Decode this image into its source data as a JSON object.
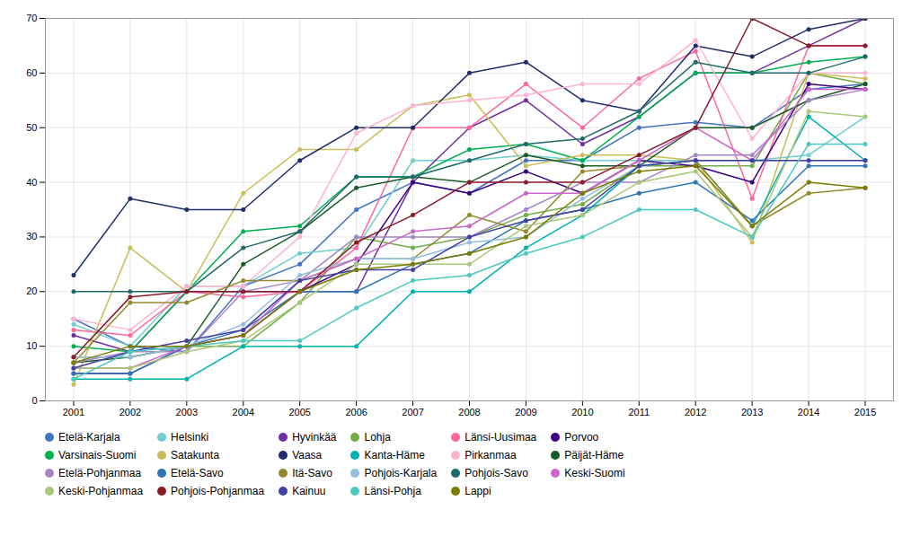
{
  "chart_data": {
    "type": "line",
    "x": [
      2001,
      2002,
      2003,
      2004,
      2005,
      2006,
      2007,
      2008,
      2009,
      2010,
      2011,
      2012,
      2013,
      2014,
      2015
    ],
    "xlim": [
      2000.5,
      2015.5
    ],
    "xticks": [
      2001,
      2002,
      2003,
      2004,
      2005,
      2006,
      2007,
      2008,
      2009,
      2010,
      2011,
      2012,
      2013,
      2014,
      2015
    ],
    "ylim": [
      0,
      70
    ],
    "yticks": [
      0,
      10,
      20,
      30,
      40,
      50,
      60,
      70
    ],
    "grid": true,
    "legend": "bottom",
    "marker": "circle",
    "series": [
      {
        "name": "Etelä-Karjala",
        "color": "#4472C4",
        "values": [
          15,
          10,
          9,
          21,
          25,
          35,
          40,
          38,
          44,
          44,
          50,
          51,
          50,
          57,
          58
        ]
      },
      {
        "name": "Helsinki",
        "color": "#70CECE",
        "values": [
          14,
          10,
          21,
          21,
          27,
          28,
          44,
          44,
          45,
          44,
          44,
          44,
          44,
          45,
          52
        ]
      },
      {
        "name": "Hyvinkää",
        "color": "#7030A0",
        "values": [
          12,
          9,
          20,
          20,
          20,
          20,
          40,
          50,
          55,
          47,
          52,
          60,
          60,
          65,
          70
        ]
      },
      {
        "name": "Lohja",
        "color": "#70AD47",
        "values": [
          8,
          8,
          10,
          10,
          18,
          30,
          28,
          30,
          34,
          36,
          43,
          43,
          43,
          60,
          58
        ]
      },
      {
        "name": "Länsi-Uusimaa",
        "color": "#FF6699",
        "values": [
          13,
          12,
          20,
          19,
          20,
          28,
          50,
          50,
          58,
          50,
          59,
          64,
          37,
          65,
          65
        ]
      },
      {
        "name": "Porvoo",
        "color": "#3B0083",
        "values": [
          5,
          5,
          10,
          12,
          20,
          25,
          40,
          38,
          42,
          38,
          44,
          43,
          40,
          58,
          57
        ]
      },
      {
        "name": "Varsinais-Suomi",
        "color": "#00B050",
        "values": [
          10,
          9,
          20,
          31,
          32,
          41,
          41,
          46,
          47,
          44,
          52,
          60,
          60,
          62,
          63
        ]
      },
      {
        "name": "Satakunta",
        "color": "#C9BE59",
        "values": [
          3,
          28,
          20,
          38,
          46,
          46,
          54,
          56,
          43,
          45,
          45,
          44,
          29,
          60,
          59
        ]
      },
      {
        "name": "Vaasa",
        "color": "#1F2D6B",
        "values": [
          23,
          37,
          35,
          35,
          44,
          50,
          50,
          60,
          62,
          55,
          53,
          65,
          63,
          68,
          70
        ]
      },
      {
        "name": "Kanta-Häme",
        "color": "#00B0B0",
        "values": [
          4,
          4,
          4,
          10,
          10,
          10,
          20,
          20,
          28,
          34,
          43,
          44,
          32,
          52,
          44
        ]
      },
      {
        "name": "Pirkanmaa",
        "color": "#FFB3D1",
        "values": [
          15,
          13,
          21,
          21,
          30,
          49,
          54,
          55,
          56,
          58,
          58,
          66,
          48,
          60,
          60
        ]
      },
      {
        "name": "Päijät-Häme",
        "color": "#1A5C28",
        "values": [
          7,
          8,
          10,
          25,
          31,
          39,
          41,
          40,
          45,
          43,
          43,
          50,
          50,
          55,
          58
        ]
      },
      {
        "name": "Etelä-Pohjanmaa",
        "color": "#A585C8",
        "values": [
          7,
          9,
          9,
          20,
          22,
          30,
          30,
          30,
          35,
          40,
          40,
          45,
          45,
          55,
          57
        ]
      },
      {
        "name": "Etelä-Savo",
        "color": "#2E75B6",
        "values": [
          5,
          5,
          10,
          13,
          20,
          20,
          25,
          27,
          33,
          35,
          38,
          40,
          33,
          43,
          43
        ]
      },
      {
        "name": "Itä-Savo",
        "color": "#948A2D",
        "values": [
          7,
          18,
          18,
          22,
          22,
          26,
          26,
          34,
          31,
          42,
          43,
          44,
          32,
          38,
          39
        ]
      },
      {
        "name": "Pohjois-Karjala",
        "color": "#92BFDD",
        "values": [
          8,
          8,
          10,
          14,
          23,
          26,
          26,
          29,
          30,
          37,
          43,
          44,
          44,
          44,
          44
        ]
      },
      {
        "name": "Pohjois-Savo",
        "color": "#1F6B6B",
        "values": [
          20,
          20,
          20,
          28,
          31,
          41,
          41,
          44,
          47,
          48,
          53,
          62,
          60,
          60,
          63
        ]
      },
      {
        "name": "Keski-Suomi",
        "color": "#CC66CC",
        "values": [
          6,
          6,
          10,
          12,
          22,
          26,
          31,
          32,
          38,
          38,
          44,
          50,
          44,
          57,
          57
        ]
      },
      {
        "name": "Keski-Pohjanmaa",
        "color": "#A9C87A",
        "values": [
          6,
          6,
          9,
          11,
          18,
          25,
          25,
          25,
          32,
          34,
          40,
          42,
          30,
          53,
          52
        ]
      },
      {
        "name": "Pohjois-Pohjanmaa",
        "color": "#8B1A2A",
        "values": [
          8,
          19,
          20,
          20,
          20,
          29,
          34,
          40,
          40,
          40,
          45,
          50,
          70,
          65,
          65
        ]
      },
      {
        "name": "Kainuu",
        "color": "#4040A0",
        "values": [
          6,
          9,
          11,
          13,
          22,
          24,
          24,
          30,
          33,
          35,
          43,
          44,
          44,
          44,
          44
        ]
      },
      {
        "name": "Länsi-Pohja",
        "color": "#4DC8C0",
        "values": [
          4,
          9,
          10,
          11,
          11,
          17,
          22,
          23,
          27,
          30,
          35,
          35,
          30,
          47,
          47
        ]
      },
      {
        "name": "Lappi",
        "color": "#7B7B00",
        "values": [
          7,
          10,
          10,
          12,
          20,
          24,
          25,
          27,
          30,
          38,
          42,
          43,
          32,
          40,
          39
        ]
      }
    ]
  }
}
